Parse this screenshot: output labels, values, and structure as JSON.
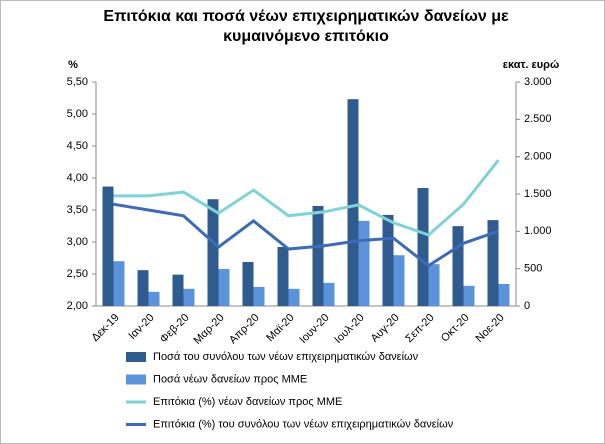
{
  "chart_data": {
    "type": "combo",
    "title": "Επιτόκια και ποσά νέων επιχειρηματικών δανείων με κυμαινόμενο επιτόκιο",
    "y_label": "%",
    "y2_label": "εκατ. ευρώ",
    "categories": [
      "Δεκ-19",
      "Ιαν-20",
      "Φεβ-20",
      "Μαρ-20",
      "Απρ-20",
      "Μαϊ-20",
      "Ιουν-20",
      "Ιουλ-20",
      "Αυγ-20",
      "Σεπ-20",
      "Οκτ-20",
      "Νοε-20"
    ],
    "ylim": [
      2,
      5.5
    ],
    "yticks": [
      {
        "value": 2,
        "label": "2,00"
      },
      {
        "value": 2.5,
        "label": "2,50"
      },
      {
        "value": 3,
        "label": "3,00"
      },
      {
        "value": 3.5,
        "label": "3,50"
      },
      {
        "value": 4,
        "label": "4,00"
      },
      {
        "value": 4.5,
        "label": "4,50"
      },
      {
        "value": 5,
        "label": "5,00"
      },
      {
        "value": 5.5,
        "label": "5,50"
      }
    ],
    "y2lim": [
      0,
      3000
    ],
    "y2ticks": [
      0,
      500,
      {
        "value": 1000,
        "label": "1.000"
      },
      {
        "value": 1500,
        "label": "1.500"
      },
      {
        "value": 2000,
        "label": "2.000"
      },
      {
        "value": 2500,
        "label": "2.500"
      },
      {
        "value": 3000,
        "label": "3.000"
      }
    ],
    "series": [
      {
        "name": "Ποσά του συνόλου των νέων επιχειρηματικών δανείων",
        "type": "bar",
        "axis": "y2",
        "color": "#2f5b8f",
        "values": [
          1600,
          480,
          420,
          1430,
          590,
          790,
          1340,
          2770,
          1220,
          1580,
          1070,
          1150
        ]
      },
      {
        "name": "Ποσά νέων δανείων προς ΜΜΕ",
        "type": "bar",
        "axis": "y2",
        "color": "#5b93db",
        "values": [
          600,
          190,
          230,
          495,
          255,
          230,
          310,
          1140,
          680,
          560,
          270,
          295
        ]
      },
      {
        "name": "Επιτόκια (%) νέων δανείων προς ΜΜΕ",
        "type": "line",
        "color": "#7fd3d8",
        "values": [
          3.72,
          3.72,
          3.78,
          3.45,
          3.81,
          3.41,
          3.47,
          3.58,
          3.3,
          3.11,
          3.59,
          4.28
        ]
      },
      {
        "name": "Επιτόκια (%) του συνόλου των νέων επιχειρηματικών δανείων",
        "type": "line",
        "color": "#3d6bb5",
        "values": [
          3.59,
          3.5,
          3.41,
          2.92,
          3.33,
          2.89,
          2.94,
          3.02,
          3.06,
          2.63,
          2.98,
          3.17
        ]
      }
    ]
  }
}
